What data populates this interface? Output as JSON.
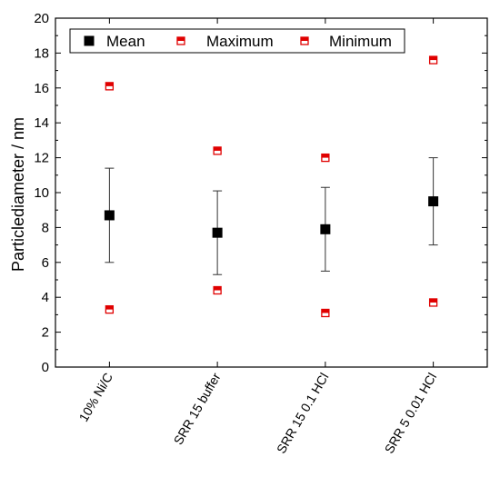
{
  "chart_data": {
    "type": "scatter",
    "ylabel": "Particlediameter  /  nm",
    "xlabel": "",
    "ylim": [
      0,
      20
    ],
    "yticks": [
      0,
      2,
      4,
      6,
      8,
      10,
      12,
      14,
      16,
      18,
      20
    ],
    "categories": [
      "10% Ni/C",
      "SRR 15 buffer",
      "SRR 15 0.1 HCl",
      "SRR 5 0.01 HCl"
    ],
    "series": [
      {
        "name": "Mean",
        "values": [
          8.7,
          7.7,
          7.9,
          9.5
        ],
        "error": [
          2.7,
          2.4,
          2.4,
          2.5
        ],
        "color": "#000000",
        "marker": "square-filled"
      },
      {
        "name": "Maximum",
        "values": [
          16.1,
          12.4,
          12.0,
          17.6
        ],
        "color": "#e00000",
        "marker": "square-half-top"
      },
      {
        "name": "Minimum",
        "values": [
          3.3,
          4.4,
          3.1,
          3.7
        ],
        "color": "#e00000",
        "marker": "square-half-top"
      }
    ],
    "legend_position": "top",
    "grid": false
  }
}
